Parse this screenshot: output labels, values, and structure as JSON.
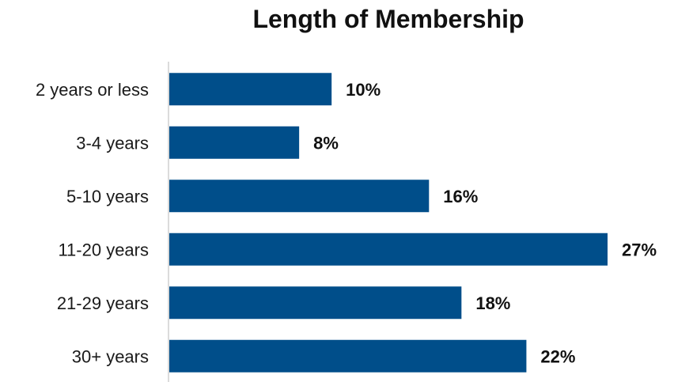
{
  "chart_data": {
    "type": "bar",
    "orientation": "horizontal",
    "title": "Length of Membership",
    "categories": [
      "2 years or less",
      "3-4 years",
      "5-10 years",
      "11-20 years",
      "21-29 years",
      "30+ years"
    ],
    "values": [
      10,
      8,
      16,
      27,
      18,
      22
    ],
    "value_labels": [
      "10%",
      "8%",
      "16%",
      "27%",
      "18%",
      "22%"
    ],
    "unit": "%",
    "xlim": [
      0,
      30
    ],
    "grid": false,
    "legend": "none",
    "colors": {
      "bar": "#004e8a",
      "axis": "#cfcfcf"
    }
  }
}
